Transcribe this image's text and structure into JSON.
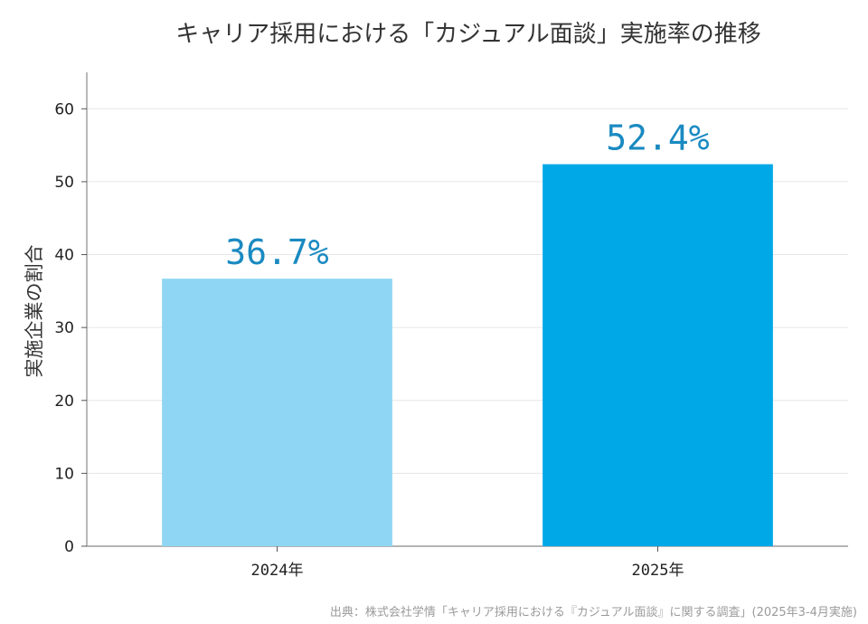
{
  "chart_data": {
    "type": "bar",
    "title": "キャリア採用における「カジュアル面談」実施率の推移",
    "ylabel": "実施企業の割合",
    "xlabel": "",
    "categories": [
      "2024年",
      "2025年"
    ],
    "values": [
      36.7,
      52.4
    ],
    "data_labels": [
      "36.7%",
      "52.4%"
    ],
    "ylim": [
      0,
      65
    ],
    "yticks": [
      0,
      10,
      20,
      30,
      40,
      50,
      60
    ],
    "grid": "horizontal",
    "bar_colors": [
      "#8fd6f4",
      "#00a8e8"
    ],
    "label_color": "#1a8ac1",
    "source": "出典：株式会社学情「キャリア採用における『カジュアル面談』に関する調査」(2025年3-4月実施)"
  }
}
